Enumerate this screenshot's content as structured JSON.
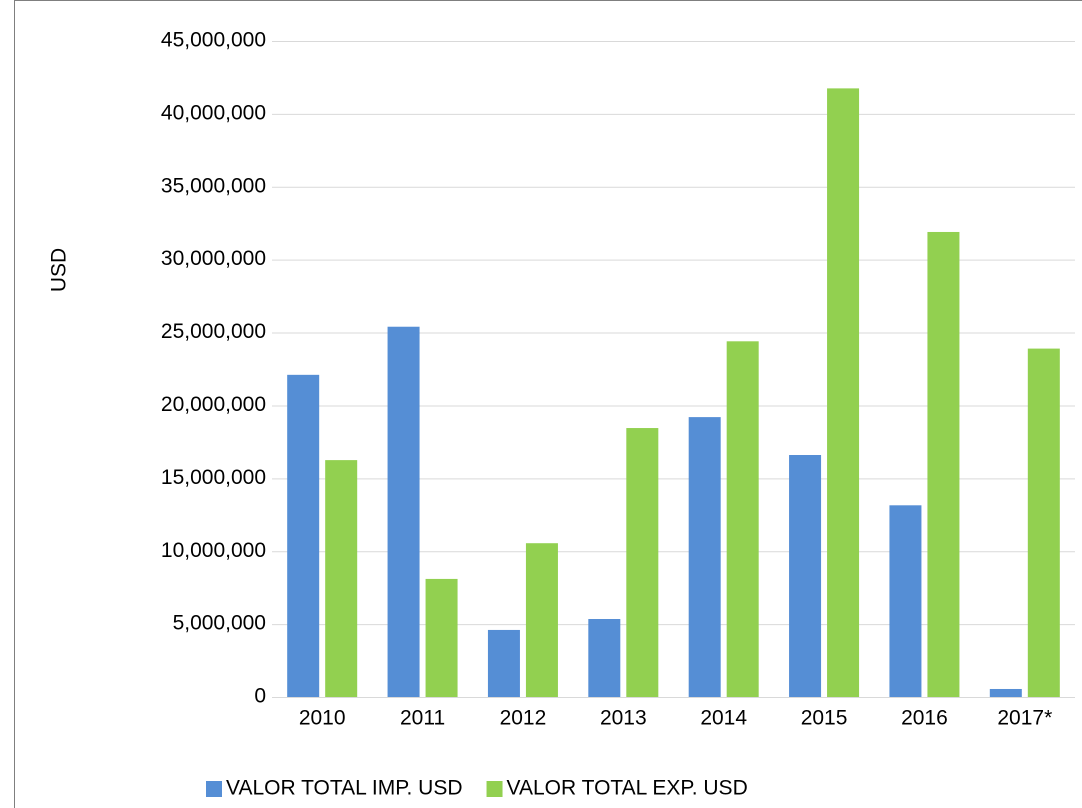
{
  "chart_data": {
    "type": "bar",
    "y_label": "USD",
    "categories": [
      "2010",
      "2011",
      "2012",
      "2013",
      "2014",
      "2015",
      "2016",
      "2017*"
    ],
    "series": [
      {
        "name": "VALOR TOTAL IMP. USD",
        "color": "#558ed5",
        "values": [
          22100000,
          25400000,
          4600000,
          5350000,
          19200000,
          16600000,
          13150000,
          550000
        ]
      },
      {
        "name": "VALOR TOTAL EXP. USD",
        "color": "#92d050",
        "values": [
          16250000,
          8100000,
          10550000,
          18450000,
          24400000,
          41750000,
          31900000,
          23900000
        ]
      }
    ],
    "ylim": [
      0,
      45000000
    ],
    "yticks": [
      {
        "value": 0,
        "label": "0"
      },
      {
        "value": 5000000,
        "label": "5,000,000"
      },
      {
        "value": 10000000,
        "label": "10,000,000"
      },
      {
        "value": 15000000,
        "label": "15,000,000"
      },
      {
        "value": 20000000,
        "label": "20,000,000"
      },
      {
        "value": 25000000,
        "label": "25,000,000"
      },
      {
        "value": 30000000,
        "label": "30,000,000"
      },
      {
        "value": 35000000,
        "label": "35,000,000"
      },
      {
        "value": 40000000,
        "label": "40,000,000"
      },
      {
        "value": 45000000,
        "label": "45,000,000"
      }
    ],
    "grid": true,
    "legend": "bottom"
  }
}
